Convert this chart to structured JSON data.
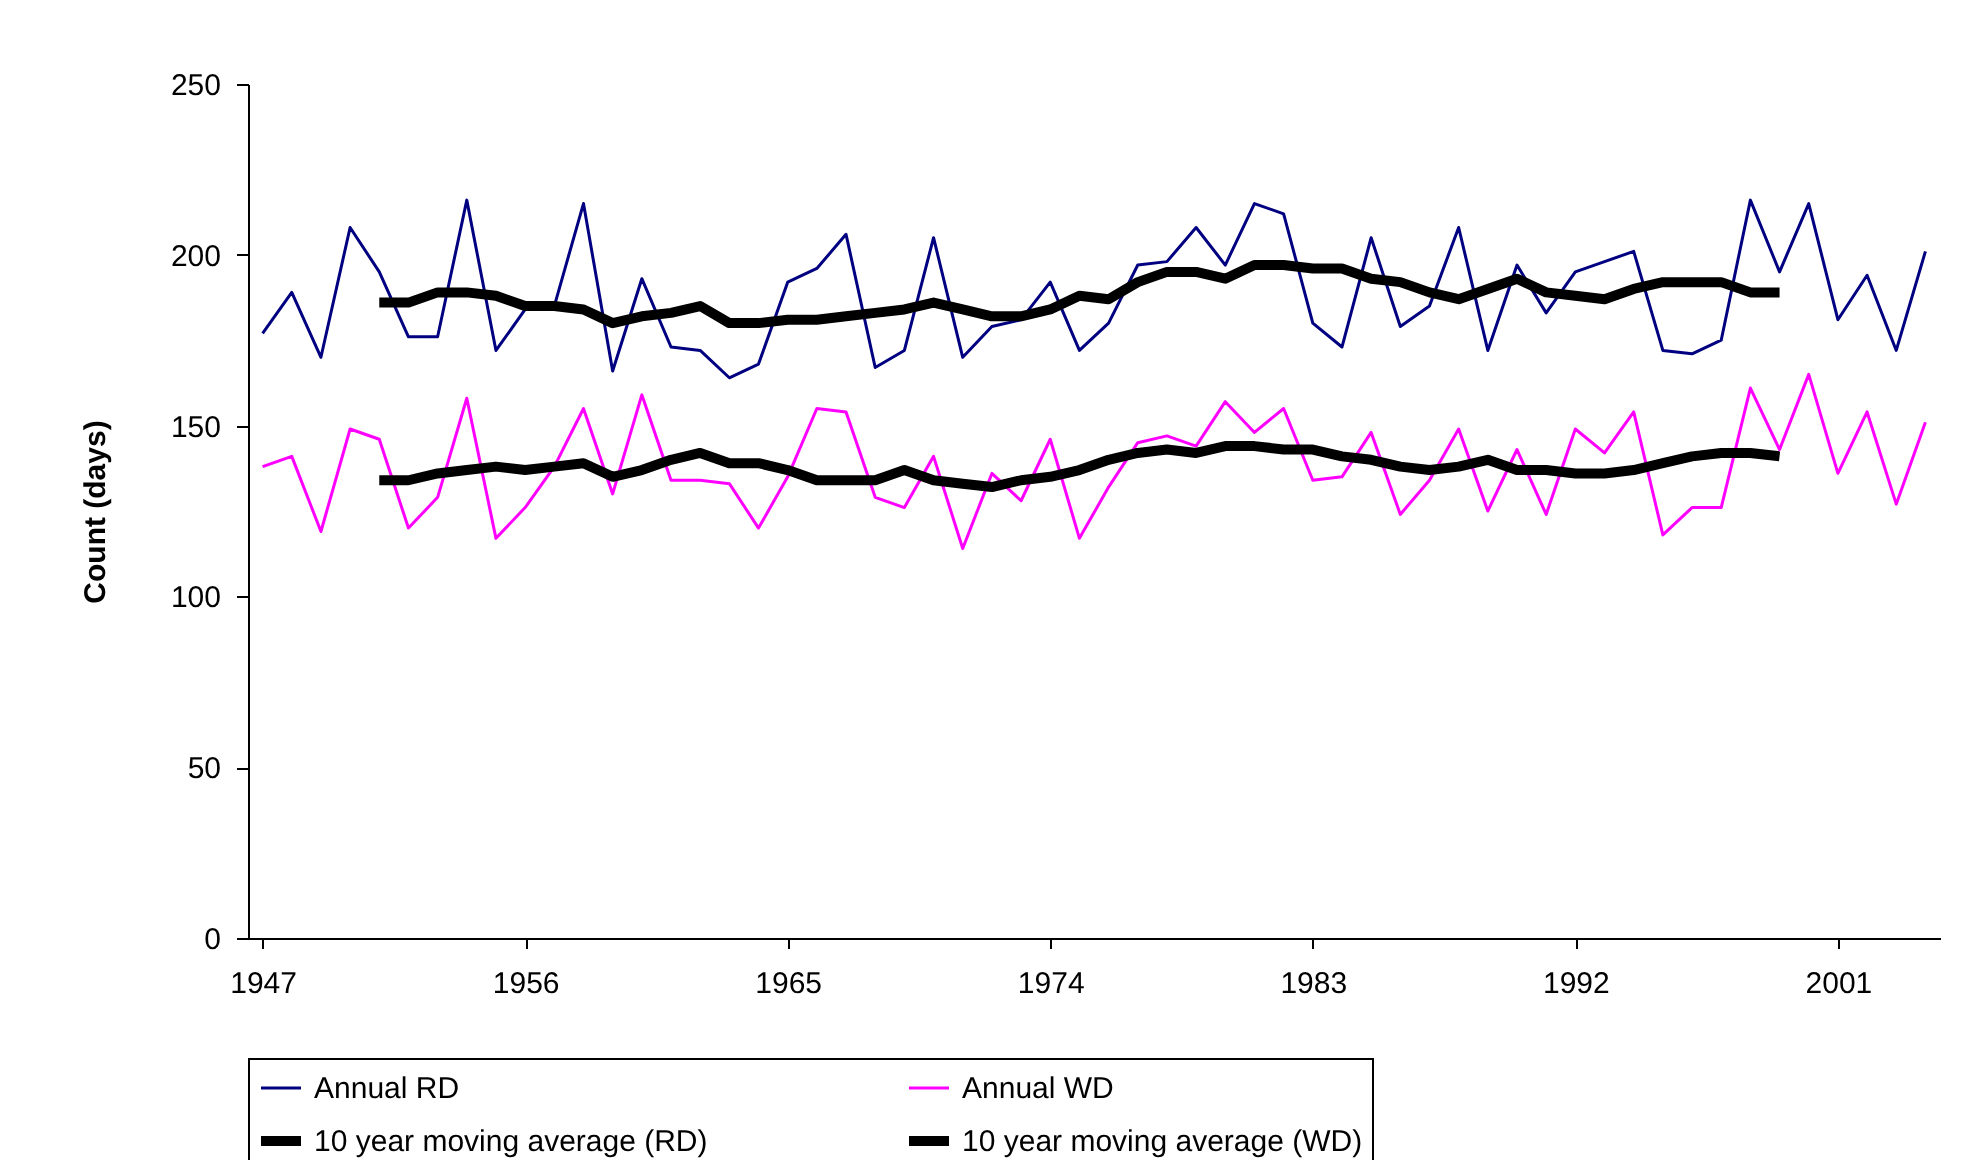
{
  "chart_data": {
    "type": "line",
    "ylabel": "Count (days)",
    "x": [
      1947,
      1948,
      1949,
      1950,
      1951,
      1952,
      1953,
      1954,
      1955,
      1956,
      1957,
      1958,
      1959,
      1960,
      1961,
      1962,
      1963,
      1964,
      1965,
      1966,
      1967,
      1968,
      1969,
      1970,
      1971,
      1972,
      1973,
      1974,
      1975,
      1976,
      1977,
      1978,
      1979,
      1980,
      1981,
      1982,
      1983,
      1984,
      1985,
      1986,
      1987,
      1988,
      1989,
      1990,
      1991,
      1992,
      1993,
      1994,
      1995,
      1996,
      1997,
      1998,
      1999,
      2000,
      2001,
      2002,
      2003,
      2004
    ],
    "series": [
      {
        "name": "Annual RD",
        "color": "#000080",
        "values": [
          177,
          189,
          170,
          208,
          195,
          176,
          176,
          216,
          172,
          184,
          185,
          215,
          166,
          193,
          173,
          172,
          164,
          168,
          192,
          196,
          206,
          167,
          172,
          205,
          170,
          179,
          181,
          192,
          172,
          180,
          197,
          198,
          208,
          197,
          215,
          212,
          180,
          173,
          205,
          179,
          185,
          208,
          172,
          197,
          183,
          195,
          198,
          201,
          172,
          171,
          175,
          216,
          195,
          215,
          181,
          194,
          172,
          201
        ]
      },
      {
        "name": "Annual WD",
        "color": "#ff00ff",
        "values": [
          138,
          141,
          119,
          149,
          146,
          120,
          129,
          158,
          117,
          126,
          138,
          155,
          130,
          159,
          134,
          134,
          133,
          120,
          135,
          155,
          154,
          129,
          126,
          141,
          114,
          136,
          128,
          146,
          117,
          132,
          145,
          147,
          144,
          157,
          148,
          155,
          134,
          135,
          148,
          124,
          134,
          149,
          125,
          143,
          124,
          149,
          142,
          154,
          118,
          126,
          126,
          161,
          143,
          165,
          136,
          154,
          127,
          151
        ]
      },
      {
        "name": "10 year moving average (RD)",
        "color": "#000000",
        "x": [
          1951,
          1952,
          1953,
          1954,
          1955,
          1956,
          1957,
          1958,
          1959,
          1960,
          1961,
          1962,
          1963,
          1964,
          1965,
          1966,
          1967,
          1968,
          1969,
          1970,
          1971,
          1972,
          1973,
          1974,
          1975,
          1976,
          1977,
          1978,
          1979,
          1980,
          1981,
          1982,
          1983,
          1984,
          1985,
          1986,
          1987,
          1988,
          1989,
          1990,
          1991,
          1992,
          1993,
          1994,
          1995,
          1996,
          1997,
          1998,
          1999
        ],
        "values": [
          186,
          186,
          189,
          189,
          188,
          185,
          185,
          184,
          180,
          182,
          183,
          185,
          180,
          180,
          181,
          181,
          182,
          183,
          184,
          186,
          184,
          182,
          182,
          184,
          188,
          187,
          192,
          195,
          195,
          193,
          197,
          197,
          196,
          196,
          193,
          192,
          189,
          187,
          190,
          193,
          189,
          188,
          187,
          190,
          192,
          192,
          192,
          189,
          189
        ]
      },
      {
        "name": "10 year moving average (WD)",
        "color": "#000000",
        "x": [
          1951,
          1952,
          1953,
          1954,
          1955,
          1956,
          1957,
          1958,
          1959,
          1960,
          1961,
          1962,
          1963,
          1964,
          1965,
          1966,
          1967,
          1968,
          1969,
          1970,
          1971,
          1972,
          1973,
          1974,
          1975,
          1976,
          1977,
          1978,
          1979,
          1980,
          1981,
          1982,
          1983,
          1984,
          1985,
          1986,
          1987,
          1988,
          1989,
          1990,
          1991,
          1992,
          1993,
          1994,
          1995,
          1996,
          1997,
          1998,
          1999
        ],
        "values": [
          134,
          134,
          136,
          137,
          138,
          137,
          138,
          139,
          135,
          137,
          140,
          142,
          139,
          139,
          137,
          134,
          134,
          134,
          137,
          134,
          133,
          132,
          134,
          135,
          137,
          140,
          142,
          143,
          142,
          144,
          144,
          143,
          143,
          141,
          140,
          138,
          137,
          138,
          140,
          137,
          137,
          136,
          136,
          137,
          139,
          141,
          142,
          142,
          141
        ]
      }
    ],
    "xlim": [
      1946.5,
      2004.5
    ],
    "xticks": [
      1947,
      1956,
      1965,
      1974,
      1983,
      1992,
      2001
    ],
    "ylim": [
      0,
      250
    ],
    "yticks": [
      0,
      50,
      100,
      150,
      200,
      250
    ],
    "grid": false,
    "legend": "bottom"
  }
}
